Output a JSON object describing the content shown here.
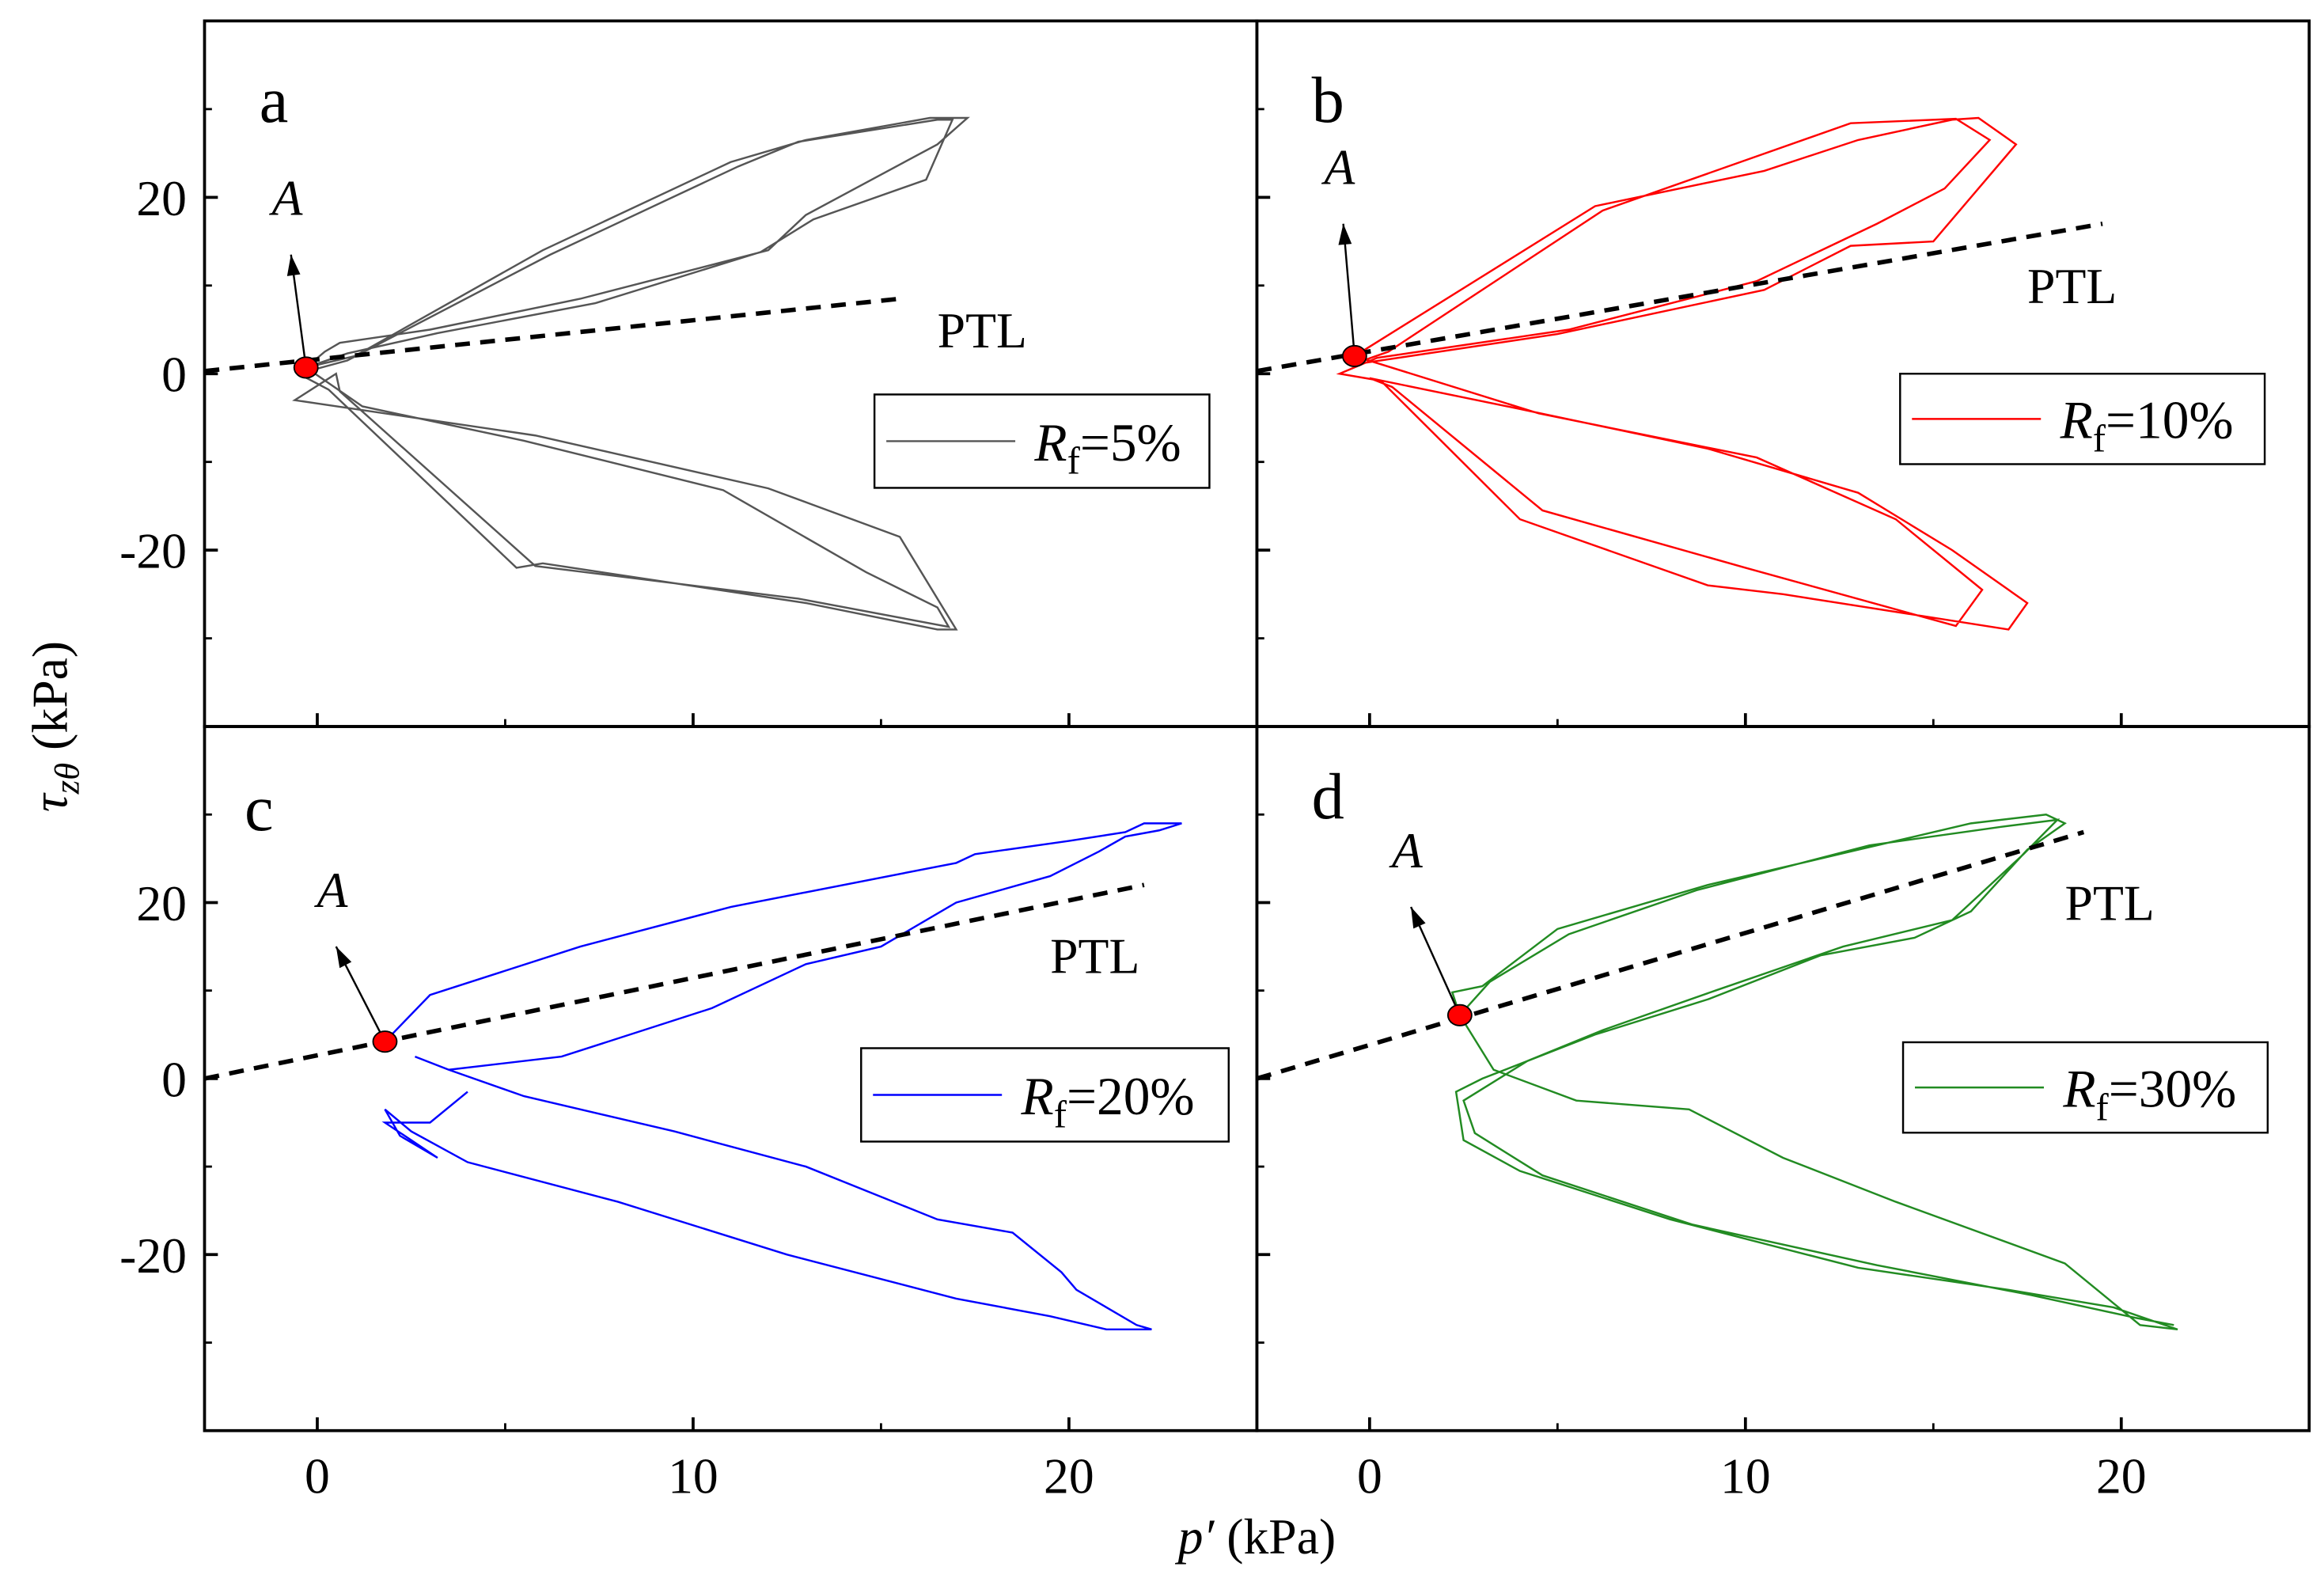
{
  "chart_data": {
    "type": "line",
    "shared_xlabel": {
      "symbol": "p′",
      "unit": " (kPa)"
    },
    "shared_ylabel": {
      "symbol": "τ",
      "sub": "zθ",
      "unit": " (kPa)"
    },
    "xlim": [
      -3,
      25
    ],
    "ylim": [
      -40,
      40
    ],
    "xticks": [
      0,
      10,
      20
    ],
    "xminor": [
      5,
      15
    ],
    "yticks": [
      -20,
      0,
      20
    ],
    "yminor": [
      -30,
      -10,
      10,
      30
    ],
    "xtick_labels": [
      "0",
      "10",
      "20"
    ],
    "ytick_labels": [
      "-20",
      "0",
      "20"
    ],
    "point_label": "A",
    "ptl_label": "PTL",
    "panels": [
      {
        "letter": "a",
        "color": "#555555",
        "legend": {
          "symbol": "R",
          "sub": "f",
          "value": "=5%"
        },
        "point_A": [
          -0.3,
          0.7
        ],
        "ptl": [
          [
            -3,
            0.3
          ],
          [
            15.5,
            8.5
          ]
        ],
        "series": [
          [
            [
              -0.3,
              0.7
            ],
            [
              0.2,
              2.5
            ],
            [
              0.6,
              3.5
            ],
            [
              3,
              5
            ],
            [
              7,
              8.5
            ],
            [
              12,
              14
            ],
            [
              13,
              18
            ],
            [
              16.5,
              26
            ],
            [
              17.3,
              29
            ],
            [
              16.3,
              29
            ],
            [
              13,
              26.5
            ],
            [
              11,
              24
            ],
            [
              6,
              14
            ],
            [
              1,
              2
            ],
            [
              -0.3,
              0.7
            ],
            [
              0.8,
              2.3
            ],
            [
              3.2,
              4.6
            ],
            [
              7.4,
              8
            ],
            [
              11.8,
              13.8
            ],
            [
              13.2,
              17.5
            ],
            [
              16.2,
              22
            ],
            [
              16.9,
              28.8
            ],
            [
              16.5,
              28.8
            ],
            [
              12.8,
              26.3
            ],
            [
              11.2,
              23.5
            ],
            [
              6.2,
              13.5
            ],
            [
              0.8,
              1.5
            ],
            [
              -0.5,
              0
            ],
            [
              0.3,
              -1.8
            ],
            [
              5.3,
              -22
            ],
            [
              6,
              -21.5
            ],
            [
              13,
              -26
            ],
            [
              16.5,
              -29
            ],
            [
              17,
              -29
            ],
            [
              15.5,
              -18.5
            ],
            [
              12,
              -13
            ],
            [
              5.8,
              -7
            ],
            [
              -0.6,
              -3
            ],
            [
              0.5,
              0
            ],
            [
              0.6,
              -2
            ],
            [
              5.8,
              -21.8
            ],
            [
              12.8,
              -25.5
            ],
            [
              16.8,
              -28.7
            ],
            [
              16.5,
              -26.5
            ],
            [
              14.6,
              -22.5
            ],
            [
              10.8,
              -13.2
            ],
            [
              5.5,
              -7.6
            ],
            [
              1.2,
              -3.7
            ],
            [
              -0.3,
              0.7
            ]
          ]
        ]
      },
      {
        "letter": "b",
        "color": "#ff0000",
        "legend": {
          "symbol": "R",
          "sub": "f",
          "value": "=10%"
        },
        "point_A": [
          -0.4,
          2
        ],
        "ptl": [
          [
            -3,
            0.3
          ],
          [
            19.5,
            17
          ]
        ],
        "series": [
          [
            [
              -0.4,
              2
            ],
            [
              6,
              19
            ],
            [
              10.5,
              23
            ],
            [
              13,
              26.5
            ],
            [
              15.5,
              28.8
            ],
            [
              16.2,
              29
            ],
            [
              17.2,
              26
            ],
            [
              15,
              15
            ],
            [
              12.8,
              14.5
            ],
            [
              10.5,
              9.5
            ],
            [
              5,
              4.5
            ],
            [
              -0.5,
              1
            ],
            [
              0.5,
              2.5
            ],
            [
              6.2,
              18.5
            ],
            [
              12.8,
              28.4
            ],
            [
              15.6,
              28.9
            ],
            [
              16.5,
              26.5
            ],
            [
              15.3,
              21
            ],
            [
              13.5,
              17
            ],
            [
              10.3,
              10.5
            ],
            [
              5.3,
              5
            ],
            [
              0.2,
              1.8
            ],
            [
              -0.8,
              0
            ],
            [
              0.3,
              -0.8
            ],
            [
              4,
              -16.5
            ],
            [
              9,
              -24
            ],
            [
              11,
              -25
            ],
            [
              17,
              -29
            ],
            [
              17.5,
              -26
            ],
            [
              15.5,
              -20
            ],
            [
              13,
              -13.5
            ],
            [
              9,
              -8.5
            ],
            [
              4,
              -4
            ],
            [
              0,
              -0.5
            ],
            [
              0.6,
              -1.5
            ],
            [
              4.6,
              -15.5
            ],
            [
              10,
              -22
            ],
            [
              15.6,
              -28.6
            ],
            [
              16.3,
              -24.5
            ],
            [
              14,
              -16.5
            ],
            [
              10.3,
              -9.5
            ],
            [
              4.5,
              -4.5
            ],
            [
              -0.4,
              2
            ]
          ]
        ]
      },
      {
        "letter": "c",
        "color": "#0000ff",
        "legend": {
          "symbol": "R",
          "sub": "f",
          "value": "=20%"
        },
        "point_A": [
          1.8,
          4.2
        ],
        "ptl": [
          [
            -3,
            0
          ],
          [
            22,
            22
          ]
        ],
        "series": [
          [
            [
              1.8,
              4.2
            ],
            [
              3,
              9.5
            ],
            [
              7,
              15
            ],
            [
              11,
              19.5
            ],
            [
              17,
              24.5
            ],
            [
              17.5,
              25.5
            ],
            [
              20,
              27
            ],
            [
              21.5,
              28
            ],
            [
              22,
              29
            ],
            [
              23,
              29
            ],
            [
              22.4,
              28.2
            ],
            [
              21.5,
              27.5
            ],
            [
              20.8,
              25.8
            ],
            [
              19.5,
              23
            ],
            [
              17,
              20
            ],
            [
              15,
              15
            ],
            [
              13,
              13
            ],
            [
              10.5,
              8
            ],
            [
              6.5,
              2.5
            ],
            [
              3.5,
              1
            ],
            [
              2.6,
              2.5
            ],
            [
              3.5,
              1
            ],
            [
              5.5,
              -2
            ],
            [
              9.5,
              -6
            ],
            [
              13,
              -10
            ],
            [
              16.5,
              -16
            ],
            [
              18.5,
              -17.5
            ],
            [
              19.8,
              -22
            ],
            [
              20.2,
              -24
            ],
            [
              21,
              -26
            ],
            [
              21.8,
              -28
            ],
            [
              22.2,
              -28.5
            ],
            [
              21,
              -28.5
            ],
            [
              19.5,
              -27
            ],
            [
              17,
              -25
            ],
            [
              12.5,
              -20
            ],
            [
              8,
              -14
            ],
            [
              4,
              -9.5
            ],
            [
              2.5,
              -6
            ],
            [
              1.8,
              -3.5
            ],
            [
              2.2,
              -6.5
            ],
            [
              3.2,
              -9
            ],
            [
              1.8,
              -5
            ],
            [
              3,
              -5
            ],
            [
              4,
              -1.5
            ]
          ]
        ]
      },
      {
        "letter": "d",
        "color": "#228b22",
        "legend": {
          "symbol": "R",
          "sub": "f",
          "value": "=30%"
        },
        "point_A": [
          2.4,
          7.2
        ],
        "ptl": [
          [
            -3,
            0
          ],
          [
            19,
            28
          ]
        ],
        "series": [
          [
            [
              2.4,
              7.2
            ],
            [
              2.2,
              9.8
            ],
            [
              3,
              10.5
            ],
            [
              5,
              17
            ],
            [
              9,
              22
            ],
            [
              13,
              26
            ],
            [
              16,
              29
            ],
            [
              18,
              30
            ],
            [
              18.5,
              29
            ],
            [
              17.5,
              26
            ],
            [
              16,
              19
            ],
            [
              14.5,
              16
            ],
            [
              12,
              14
            ],
            [
              9,
              9
            ],
            [
              6,
              5
            ],
            [
              3,
              0
            ],
            [
              2.3,
              -1.5
            ],
            [
              2.5,
              -7
            ],
            [
              4,
              -10.5
            ],
            [
              8,
              -16
            ],
            [
              13,
              -21.5
            ],
            [
              17,
              -24
            ],
            [
              19.8,
              -26
            ],
            [
              21.5,
              -28.5
            ],
            [
              20.5,
              -28
            ],
            [
              18.5,
              -21
            ],
            [
              14,
              -14
            ],
            [
              11,
              -9
            ],
            [
              8.5,
              -3.5
            ],
            [
              5.5,
              -2.5
            ],
            [
              3.3,
              1
            ],
            [
              2.4,
              7.2
            ],
            [
              3.2,
              11
            ],
            [
              5.3,
              16.4
            ],
            [
              8.7,
              21.4
            ],
            [
              13.3,
              26.5
            ],
            [
              16.8,
              28.6
            ],
            [
              18.3,
              29.4
            ],
            [
              17.4,
              25.5
            ],
            [
              15.5,
              18
            ],
            [
              12.6,
              15
            ],
            [
              9.2,
              10
            ],
            [
              6.2,
              5.5
            ],
            [
              4.2,
              2
            ],
            [
              2.5,
              -2.5
            ],
            [
              2.8,
              -6.2
            ],
            [
              4.6,
              -11
            ],
            [
              8.6,
              -16.6
            ],
            [
              13.5,
              -21.2
            ],
            [
              17.6,
              -24.6
            ],
            [
              20.4,
              -27.2
            ],
            [
              21.4,
              -28
            ]
          ]
        ]
      }
    ]
  }
}
